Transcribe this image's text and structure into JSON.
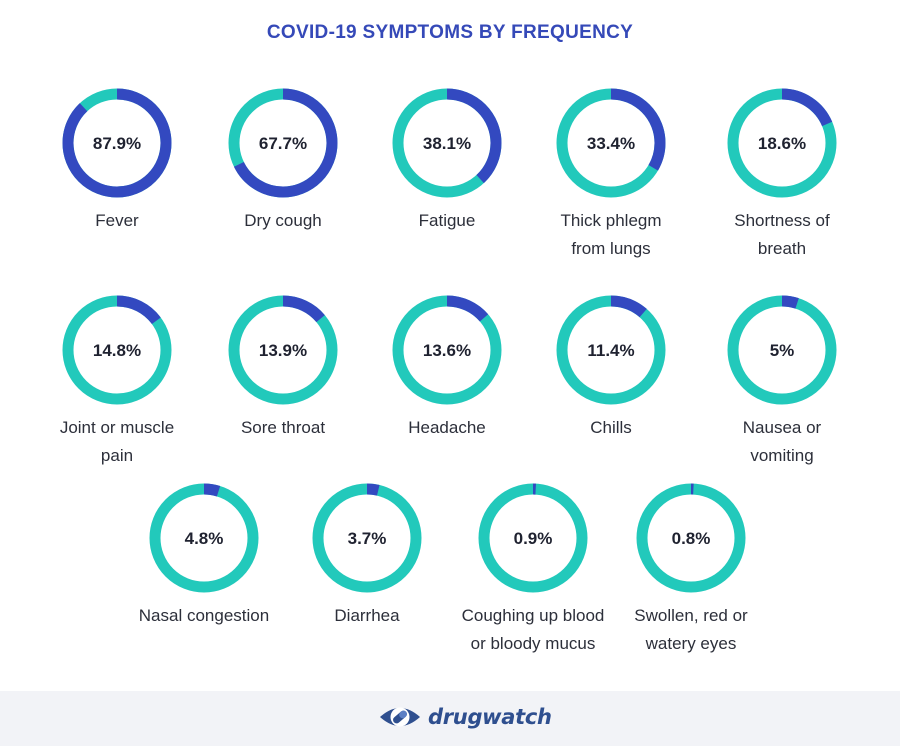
{
  "title": "COVID-19 SYMPTOMS BY FREQUENCY",
  "colors": {
    "filled": "#3349c0",
    "remaining": "#22c9bb",
    "title": "#3549b8",
    "footer_bg": "#f2f3f7"
  },
  "chart_data": {
    "type": "pie",
    "title": "COVID-19 SYMPTOMS BY FREQUENCY",
    "unit": "%",
    "items": [
      {
        "label_lines": [
          "Fever"
        ],
        "value": 87.9,
        "value_label": "87.9%"
      },
      {
        "label_lines": [
          "Dry cough"
        ],
        "value": 67.7,
        "value_label": "67.7%"
      },
      {
        "label_lines": [
          "Fatigue"
        ],
        "value": 38.1,
        "value_label": "38.1%"
      },
      {
        "label_lines": [
          "Thick phlegm",
          "from lungs"
        ],
        "value": 33.4,
        "value_label": "33.4%"
      },
      {
        "label_lines": [
          "Shortness of",
          "breath"
        ],
        "value": 18.6,
        "value_label": "18.6%"
      },
      {
        "label_lines": [
          "Joint or muscle",
          "pain"
        ],
        "value": 14.8,
        "value_label": "14.8%"
      },
      {
        "label_lines": [
          "Sore throat"
        ],
        "value": 13.9,
        "value_label": "13.9%"
      },
      {
        "label_lines": [
          "Headache"
        ],
        "value": 13.6,
        "value_label": "13.6%"
      },
      {
        "label_lines": [
          "Chills"
        ],
        "value": 11.4,
        "value_label": "11.4%"
      },
      {
        "label_lines": [
          "Nausea or",
          "vomiting"
        ],
        "value": 5,
        "value_label": "5%"
      },
      {
        "label_lines": [
          "Nasal congestion"
        ],
        "value": 4.8,
        "value_label": "4.8%"
      },
      {
        "label_lines": [
          "Diarrhea"
        ],
        "value": 3.7,
        "value_label": "3.7%"
      },
      {
        "label_lines": [
          "Coughing up blood",
          "or bloody mucus"
        ],
        "value": 0.9,
        "value_label": "0.9%"
      },
      {
        "label_lines": [
          "Swollen, red or",
          "watery eyes"
        ],
        "value": 0.8,
        "value_label": "0.8%"
      }
    ]
  },
  "footer": {
    "brand": "drugwatch",
    "logo_icon": "pill-eye-icon"
  }
}
